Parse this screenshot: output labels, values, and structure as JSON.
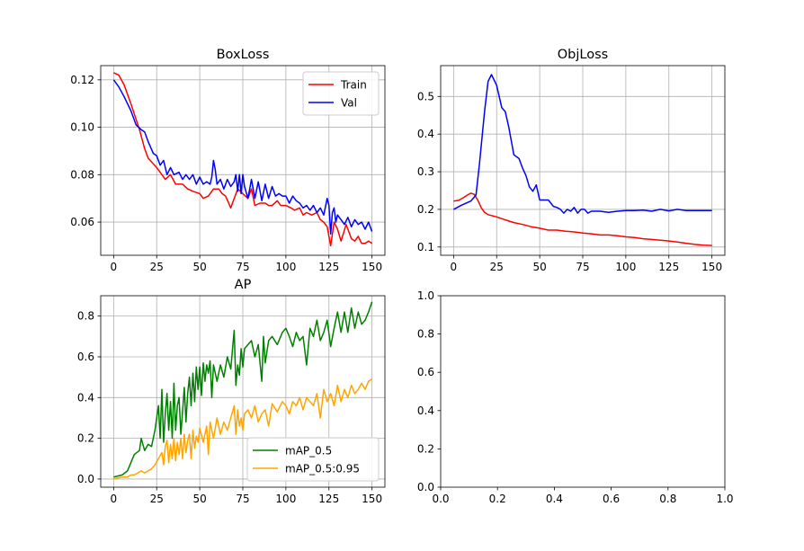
{
  "chart_data": [
    {
      "type": "line",
      "title": "BoxLoss",
      "xlabel": "",
      "ylabel": "",
      "xlim": [
        -7.5,
        157.5
      ],
      "ylim": [
        0.046,
        0.126
      ],
      "x_ticks": [
        0,
        25,
        50,
        75,
        100,
        125,
        150
      ],
      "y_ticks": [
        0.06,
        0.08,
        0.1,
        0.12
      ],
      "grid": true,
      "legend": "top-right",
      "series": [
        {
          "name": "Train",
          "color": "#ff0000",
          "x": [
            0,
            3,
            6,
            10,
            15,
            18,
            20,
            25,
            27,
            30,
            33,
            36,
            40,
            43,
            46,
            50,
            52,
            55,
            58,
            61,
            63,
            65,
            68,
            72,
            75,
            78,
            80,
            82,
            85,
            88,
            90,
            92,
            95,
            97,
            100,
            103,
            105,
            108,
            110,
            112,
            115,
            118,
            120,
            122,
            124,
            126,
            128,
            130,
            132,
            135,
            138,
            140,
            142,
            144,
            146,
            148,
            150
          ],
          "y": [
            0.123,
            0.122,
            0.118,
            0.11,
            0.099,
            0.091,
            0.087,
            0.083,
            0.081,
            0.078,
            0.08,
            0.076,
            0.076,
            0.074,
            0.073,
            0.072,
            0.07,
            0.071,
            0.074,
            0.074,
            0.072,
            0.071,
            0.066,
            0.074,
            0.072,
            0.07,
            0.074,
            0.067,
            0.068,
            0.068,
            0.067,
            0.067,
            0.069,
            0.067,
            0.067,
            0.066,
            0.065,
            0.066,
            0.063,
            0.064,
            0.063,
            0.064,
            0.061,
            0.06,
            0.058,
            0.05,
            0.06,
            0.057,
            0.052,
            0.059,
            0.053,
            0.052,
            0.054,
            0.051,
            0.051,
            0.052,
            0.051
          ]
        },
        {
          "name": "Val",
          "color": "#0000ff",
          "x": [
            0,
            3,
            6,
            10,
            13,
            16,
            18,
            20,
            23,
            25,
            27,
            29,
            31,
            33,
            35,
            38,
            40,
            42,
            44,
            46,
            48,
            50,
            52,
            54,
            56,
            57,
            58,
            59,
            60,
            62,
            64,
            66,
            68,
            70,
            71,
            72,
            73,
            74,
            75,
            76,
            78,
            80,
            82,
            84,
            86,
            88,
            90,
            92,
            94,
            96,
            98,
            100,
            102,
            104,
            106,
            108,
            110,
            112,
            114,
            116,
            118,
            120,
            122,
            124,
            125,
            126,
            127,
            128,
            129,
            130,
            132,
            134,
            136,
            138,
            140,
            142,
            144,
            146,
            148,
            150
          ],
          "y": [
            0.12,
            0.117,
            0.113,
            0.107,
            0.101,
            0.099,
            0.098,
            0.094,
            0.089,
            0.088,
            0.084,
            0.086,
            0.08,
            0.083,
            0.08,
            0.081,
            0.078,
            0.08,
            0.078,
            0.08,
            0.076,
            0.079,
            0.076,
            0.077,
            0.076,
            0.079,
            0.086,
            0.082,
            0.076,
            0.078,
            0.074,
            0.078,
            0.075,
            0.077,
            0.08,
            0.073,
            0.08,
            0.072,
            0.08,
            0.075,
            0.07,
            0.078,
            0.07,
            0.077,
            0.069,
            0.076,
            0.07,
            0.075,
            0.071,
            0.072,
            0.071,
            0.071,
            0.068,
            0.071,
            0.069,
            0.068,
            0.066,
            0.067,
            0.065,
            0.067,
            0.064,
            0.066,
            0.063,
            0.07,
            0.067,
            0.055,
            0.064,
            0.066,
            0.06,
            0.063,
            0.061,
            0.059,
            0.062,
            0.058,
            0.061,
            0.059,
            0.06,
            0.057,
            0.06,
            0.056
          ]
        }
      ]
    },
    {
      "type": "line",
      "title": "ObjLoss",
      "xlabel": "",
      "ylabel": "",
      "xlim": [
        -7.5,
        157.5
      ],
      "ylim": [
        0.078,
        0.582
      ],
      "x_ticks": [
        0,
        25,
        50,
        75,
        100,
        125,
        150
      ],
      "y_ticks": [
        0.1,
        0.2,
        0.3,
        0.4,
        0.5
      ],
      "grid": true,
      "series": [
        {
          "color": "#ff0000",
          "x": [
            0,
            3,
            6,
            8,
            10,
            12,
            14,
            16,
            18,
            20,
            25,
            30,
            35,
            40,
            45,
            50,
            55,
            60,
            65,
            70,
            75,
            80,
            85,
            90,
            95,
            100,
            105,
            110,
            115,
            120,
            125,
            130,
            135,
            140,
            145,
            150
          ],
          "y": [
            0.222,
            0.224,
            0.232,
            0.238,
            0.243,
            0.24,
            0.225,
            0.205,
            0.192,
            0.186,
            0.18,
            0.172,
            0.165,
            0.16,
            0.154,
            0.15,
            0.145,
            0.145,
            0.142,
            0.14,
            0.137,
            0.135,
            0.132,
            0.132,
            0.13,
            0.127,
            0.125,
            0.122,
            0.12,
            0.118,
            0.116,
            0.113,
            0.11,
            0.107,
            0.105,
            0.104
          ]
        },
        {
          "color": "#0000ff",
          "x": [
            0,
            5,
            10,
            13,
            15,
            18,
            20,
            22,
            25,
            28,
            30,
            32,
            35,
            38,
            40,
            42,
            44,
            46,
            48,
            50,
            52,
            55,
            58,
            60,
            62,
            64,
            66,
            68,
            70,
            72,
            74,
            76,
            78,
            80,
            85,
            90,
            95,
            100,
            105,
            110,
            115,
            120,
            125,
            130,
            135,
            140,
            145,
            150
          ],
          "y": [
            0.2,
            0.212,
            0.222,
            0.238,
            0.32,
            0.46,
            0.54,
            0.558,
            0.53,
            0.47,
            0.46,
            0.42,
            0.345,
            0.335,
            0.31,
            0.29,
            0.26,
            0.248,
            0.265,
            0.225,
            0.225,
            0.225,
            0.208,
            0.205,
            0.2,
            0.19,
            0.2,
            0.195,
            0.205,
            0.19,
            0.2,
            0.2,
            0.19,
            0.195,
            0.195,
            0.192,
            0.195,
            0.197,
            0.197,
            0.198,
            0.195,
            0.2,
            0.196,
            0.2,
            0.197,
            0.197,
            0.197,
            0.197
          ]
        }
      ]
    },
    {
      "type": "line",
      "title": "AP",
      "xlabel": "",
      "ylabel": "",
      "xlim": [
        -7.5,
        157.5
      ],
      "ylim": [
        -0.04,
        0.9
      ],
      "x_ticks": [
        0,
        25,
        50,
        75,
        100,
        125,
        150
      ],
      "y_ticks": [
        0.0,
        0.2,
        0.4,
        0.6,
        0.8
      ],
      "grid": true,
      "legend": "bottom-right",
      "series": [
        {
          "name": "mAP_0.5",
          "color": "#008000",
          "x": [
            0,
            5,
            8,
            10,
            12,
            15,
            16,
            18,
            20,
            22,
            24,
            26,
            27,
            28,
            29,
            30,
            31,
            32,
            33,
            34,
            35,
            36,
            37,
            38,
            39,
            40,
            41,
            42,
            43,
            44,
            45,
            46,
            47,
            48,
            49,
            50,
            51,
            52,
            53,
            54,
            55,
            56,
            57,
            58,
            60,
            62,
            64,
            66,
            68,
            70,
            71,
            72,
            73,
            74,
            75,
            76,
            78,
            80,
            82,
            84,
            86,
            87,
            88,
            90,
            92,
            95,
            98,
            100,
            102,
            104,
            106,
            108,
            110,
            112,
            114,
            116,
            118,
            120,
            122,
            124,
            126,
            128,
            130,
            132,
            134,
            136,
            138,
            140,
            142,
            144,
            146,
            148,
            150
          ],
          "y": [
            0.01,
            0.02,
            0.04,
            0.08,
            0.12,
            0.14,
            0.2,
            0.14,
            0.17,
            0.16,
            0.24,
            0.36,
            0.2,
            0.44,
            0.18,
            0.32,
            0.42,
            0.24,
            0.38,
            0.2,
            0.47,
            0.24,
            0.36,
            0.4,
            0.22,
            0.33,
            0.45,
            0.28,
            0.42,
            0.5,
            0.36,
            0.52,
            0.38,
            0.55,
            0.44,
            0.55,
            0.41,
            0.57,
            0.48,
            0.56,
            0.52,
            0.58,
            0.4,
            0.56,
            0.48,
            0.56,
            0.5,
            0.6,
            0.54,
            0.73,
            0.46,
            0.56,
            0.51,
            0.64,
            0.55,
            0.64,
            0.66,
            0.68,
            0.6,
            0.66,
            0.48,
            0.7,
            0.57,
            0.68,
            0.7,
            0.66,
            0.72,
            0.74,
            0.7,
            0.65,
            0.72,
            0.68,
            0.7,
            0.56,
            0.74,
            0.7,
            0.78,
            0.68,
            0.72,
            0.78,
            0.65,
            0.74,
            0.82,
            0.72,
            0.82,
            0.72,
            0.84,
            0.74,
            0.82,
            0.76,
            0.78,
            0.82,
            0.87
          ]
        },
        {
          "name": "mAP_0.5:0.95",
          "color": "#ffa500",
          "x": [
            0,
            5,
            8,
            10,
            12,
            14,
            16,
            18,
            20,
            22,
            24,
            26,
            28,
            29,
            30,
            31,
            32,
            33,
            34,
            35,
            36,
            37,
            38,
            39,
            40,
            41,
            42,
            43,
            44,
            45,
            46,
            47,
            48,
            49,
            50,
            52,
            54,
            55,
            56,
            58,
            60,
            62,
            64,
            66,
            68,
            70,
            71,
            72,
            73,
            74,
            75,
            76,
            78,
            80,
            82,
            84,
            86,
            88,
            90,
            92,
            95,
            98,
            100,
            102,
            104,
            106,
            108,
            110,
            112,
            114,
            116,
            118,
            120,
            122,
            124,
            126,
            128,
            130,
            132,
            134,
            136,
            138,
            140,
            142,
            144,
            146,
            148,
            150
          ],
          "y": [
            0.0,
            0.01,
            0.01,
            0.02,
            0.02,
            0.03,
            0.04,
            0.03,
            0.04,
            0.05,
            0.07,
            0.1,
            0.13,
            0.07,
            0.16,
            0.19,
            0.08,
            0.17,
            0.1,
            0.2,
            0.09,
            0.18,
            0.12,
            0.2,
            0.1,
            0.22,
            0.13,
            0.19,
            0.22,
            0.1,
            0.24,
            0.15,
            0.21,
            0.18,
            0.25,
            0.18,
            0.26,
            0.12,
            0.28,
            0.2,
            0.3,
            0.22,
            0.28,
            0.24,
            0.3,
            0.36,
            0.22,
            0.34,
            0.26,
            0.3,
            0.24,
            0.32,
            0.34,
            0.3,
            0.36,
            0.28,
            0.32,
            0.34,
            0.26,
            0.37,
            0.33,
            0.38,
            0.36,
            0.32,
            0.38,
            0.36,
            0.4,
            0.34,
            0.4,
            0.38,
            0.36,
            0.42,
            0.3,
            0.44,
            0.38,
            0.42,
            0.36,
            0.46,
            0.38,
            0.44,
            0.4,
            0.46,
            0.42,
            0.44,
            0.47,
            0.44,
            0.48,
            0.49
          ]
        }
      ]
    },
    {
      "type": "line",
      "title": "",
      "xlabel": "",
      "ylabel": "",
      "xlim": [
        0,
        1
      ],
      "ylim": [
        0,
        1
      ],
      "x_ticks": [
        0.0,
        0.2,
        0.4,
        0.6,
        0.8,
        1.0
      ],
      "y_ticks": [
        0.0,
        0.2,
        0.4,
        0.6,
        0.8,
        1.0
      ],
      "grid": false,
      "series": []
    }
  ]
}
